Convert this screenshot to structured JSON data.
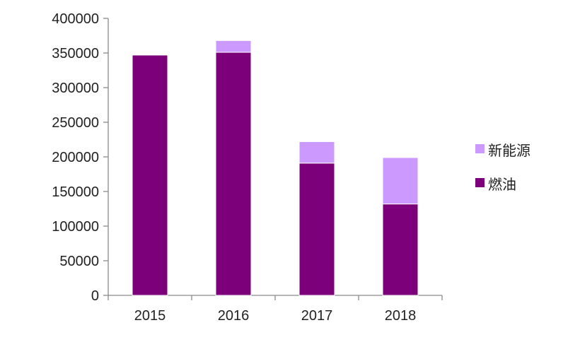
{
  "chart_data": {
    "type": "bar",
    "stacked": true,
    "categories": [
      "2015",
      "2016",
      "2017",
      "2018"
    ],
    "series": [
      {
        "name": "燃油",
        "color": "#7B0079",
        "values": [
          347000,
          351000,
          191000,
          132000
        ]
      },
      {
        "name": "新能源",
        "color": "#CC99FF",
        "values": [
          0,
          17000,
          31000,
          67000
        ]
      }
    ],
    "ylim": [
      0,
      400000
    ],
    "yticks": [
      0,
      50000,
      100000,
      150000,
      200000,
      250000,
      300000,
      350000,
      400000
    ],
    "legend": {
      "position": "right",
      "order": [
        "新能源",
        "燃油"
      ]
    },
    "grid": false
  }
}
